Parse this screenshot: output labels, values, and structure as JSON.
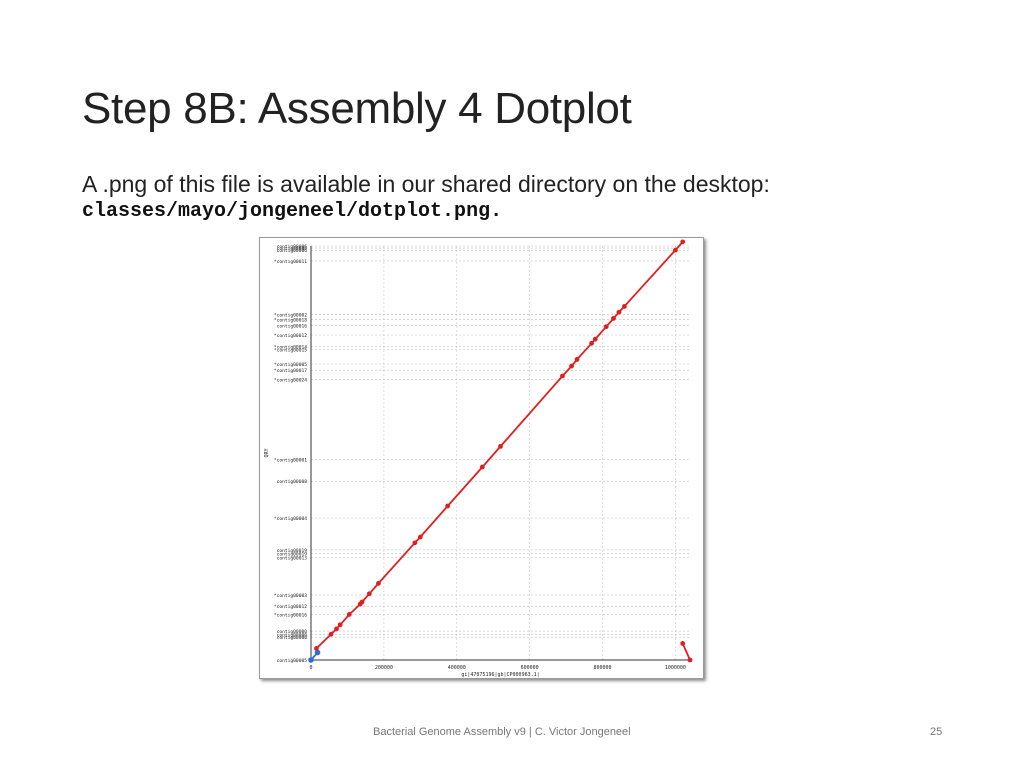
{
  "slide": {
    "title": "Step 8B: Assembly 4 Dotplot",
    "body": "A .png of this file is available in our shared directory on the desktop:",
    "path": "classes/mayo/jongeneel/dotplot.png.",
    "footer": "Bacterial Genome Assembly v9 | C. Victor Jongeneel",
    "page_number": "25"
  },
  "chart_data": {
    "type": "scatter",
    "xlabel": "gi|47075196|gb|CP000963.1|",
    "ylabel": "QRY",
    "xlim": [
      0,
      1040000
    ],
    "x_ticks": [
      "0",
      "200000",
      "400000",
      "600000",
      "800000",
      "1000000"
    ],
    "grid": true,
    "colors": {
      "forward": "#e02020",
      "reverse": "#2a6fd6"
    },
    "contig_labels": [
      {
        "label": "contig00006",
        "y": 1.0
      },
      {
        "label": "contig00006",
        "y": 0.995
      },
      {
        "label": "contig00006",
        "y": 0.99
      },
      {
        "label": "*contig00011",
        "y": 0.964
      },
      {
        "label": "*contig00002",
        "y": 0.835
      },
      {
        "label": "*contig00018",
        "y": 0.822
      },
      {
        "label": "contig00016",
        "y": 0.808
      },
      {
        "label": "*contig00012",
        "y": 0.785
      },
      {
        "label": "*contig00014",
        "y": 0.757
      },
      {
        "label": "*contig00015",
        "y": 0.75
      },
      {
        "label": "*contig00005",
        "y": 0.715
      },
      {
        "label": "*contig00017",
        "y": 0.7
      },
      {
        "label": "*contig00024",
        "y": 0.678
      },
      {
        "label": "*contig00001",
        "y": 0.484
      },
      {
        "label": "contig00008",
        "y": 0.432
      },
      {
        "label": "*contig00004",
        "y": 0.343
      },
      {
        "label": "contig00019",
        "y": 0.266
      },
      {
        "label": "contig00019",
        "y": 0.257
      },
      {
        "label": "contig00013",
        "y": 0.247
      },
      {
        "label": "*contig00003",
        "y": 0.157
      },
      {
        "label": "*contig00012",
        "y": 0.13
      },
      {
        "label": "*contig00016",
        "y": 0.11
      },
      {
        "label": "contig00000",
        "y": 0.07
      },
      {
        "label": "contig00000",
        "y": 0.062
      },
      {
        "label": "contig00000",
        "y": 0.055
      },
      {
        "label": "contig00005",
        "y": 0.0
      }
    ],
    "forward_points": [
      [
        15000,
        0.028
      ],
      [
        55000,
        0.062
      ],
      [
        70000,
        0.075
      ],
      [
        80000,
        0.085
      ],
      [
        105000,
        0.11
      ],
      [
        135000,
        0.135
      ],
      [
        140000,
        0.14
      ],
      [
        160000,
        0.16
      ],
      [
        185000,
        0.185
      ],
      [
        285000,
        0.283
      ],
      [
        300000,
        0.297
      ],
      [
        375000,
        0.372
      ],
      [
        470000,
        0.466
      ],
      [
        520000,
        0.516
      ],
      [
        690000,
        0.686
      ],
      [
        715000,
        0.71
      ],
      [
        730000,
        0.726
      ],
      [
        770000,
        0.765
      ],
      [
        780000,
        0.775
      ],
      [
        810000,
        0.805
      ],
      [
        830000,
        0.825
      ],
      [
        845000,
        0.84
      ],
      [
        860000,
        0.854
      ],
      [
        1000000,
        0.99
      ],
      [
        1020000,
        1.01
      ]
    ],
    "reverse_tail": [
      [
        1020000,
        0.04
      ],
      [
        1040000,
        0.0
      ]
    ],
    "reverse_points": [
      [
        0,
        0.0
      ],
      [
        18000,
        0.018
      ]
    ]
  }
}
